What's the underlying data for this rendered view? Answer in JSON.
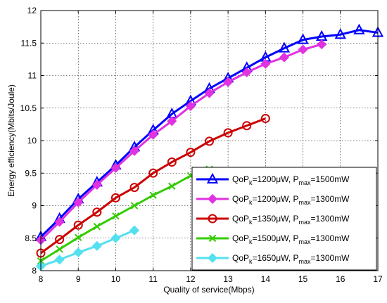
{
  "chart_data": {
    "type": "line",
    "title": "",
    "xlabel": "Quality of service(Mbps)",
    "ylabel": "Energy efficiency(Mbits/Joule)",
    "xlim": [
      8,
      17
    ],
    "ylim": [
      8,
      12
    ],
    "xticks": [
      "8",
      "9",
      "10",
      "11",
      "12",
      "13",
      "14",
      "15",
      "16",
      "17"
    ],
    "yticks": [
      "8",
      "8.5",
      "9",
      "9.5",
      "10",
      "10.5",
      "11",
      "11.5",
      "12"
    ],
    "grid": true,
    "legend_position": "bottom-right",
    "series": [
      {
        "name": "QoP_k=1200μW, P_max=1500mW",
        "legend": {
          "q": "QoP",
          "qsub": "k",
          "mid": "=1200μW, P",
          "psub": "max",
          "end": "=1500mW"
        },
        "color": "#0000ff",
        "marker": "triangle",
        "x": [
          8,
          8.5,
          9,
          9.5,
          10,
          10.5,
          11,
          11.5,
          12,
          12.5,
          13,
          13.5,
          14,
          14.5,
          15,
          15.5,
          16,
          16.5,
          17
        ],
        "y": [
          8.52,
          8.8,
          9.1,
          9.36,
          9.62,
          9.9,
          10.16,
          10.41,
          10.61,
          10.8,
          10.96,
          11.12,
          11.28,
          11.42,
          11.55,
          11.6,
          11.63,
          11.7,
          11.66
        ]
      },
      {
        "name": "QoP_k=1200μW, P_max=1300mW",
        "legend": {
          "q": "QoP",
          "qsub": "k",
          "mid": "=1200μW, P",
          "psub": "max",
          "end": "=1300mW"
        },
        "color": "#e032e0",
        "marker": "diamond",
        "x": [
          8,
          8.5,
          9,
          9.5,
          10,
          10.5,
          11,
          11.5,
          12,
          12.5,
          13,
          13.5,
          14,
          14.5,
          15,
          15.5
        ],
        "y": [
          8.47,
          8.75,
          9.05,
          9.32,
          9.58,
          9.84,
          10.09,
          10.3,
          10.53,
          10.73,
          10.9,
          11.05,
          11.18,
          11.28,
          11.4,
          11.48
        ]
      },
      {
        "name": "QoP_k=1350μW, P_max=1300mW",
        "legend": {
          "q": "QoP",
          "qsub": "k",
          "mid": "=1350μW, P",
          "psub": "max",
          "end": "=1300mW"
        },
        "color": "#cc0000",
        "marker": "circle",
        "x": [
          8,
          8.5,
          9,
          9.5,
          10,
          10.5,
          11,
          11.5,
          12,
          12.5,
          13,
          13.5,
          14
        ],
        "y": [
          8.27,
          8.48,
          8.7,
          8.9,
          9.12,
          9.28,
          9.5,
          9.67,
          9.82,
          9.99,
          10.12,
          10.23,
          10.34
        ]
      },
      {
        "name": "QoP_k=1500μW, P_max=1300mW",
        "legend": {
          "q": "QoP",
          "qsub": "k",
          "mid": "=1500μW, P",
          "psub": "max",
          "end": "=1300mW"
        },
        "color": "#33cc00",
        "marker": "x",
        "x": [
          8,
          8.5,
          9,
          9.5,
          10,
          10.5,
          11,
          11.5,
          12,
          12.5
        ],
        "y": [
          8.15,
          8.33,
          8.51,
          8.68,
          8.84,
          9.0,
          9.16,
          9.3,
          9.46,
          9.56
        ]
      },
      {
        "name": "QoP_k=1650μW, P_max=1300mW",
        "legend": {
          "q": "QoP",
          "qsub": "k",
          "mid": "=1650μW, P",
          "psub": "max",
          "end": "=1300mW"
        },
        "color": "#55e0f0",
        "marker": "diamond",
        "x": [
          8,
          8.5,
          9,
          9.5,
          10,
          10.5
        ],
        "y": [
          8.07,
          8.17,
          8.28,
          8.38,
          8.5,
          8.62
        ]
      }
    ]
  }
}
